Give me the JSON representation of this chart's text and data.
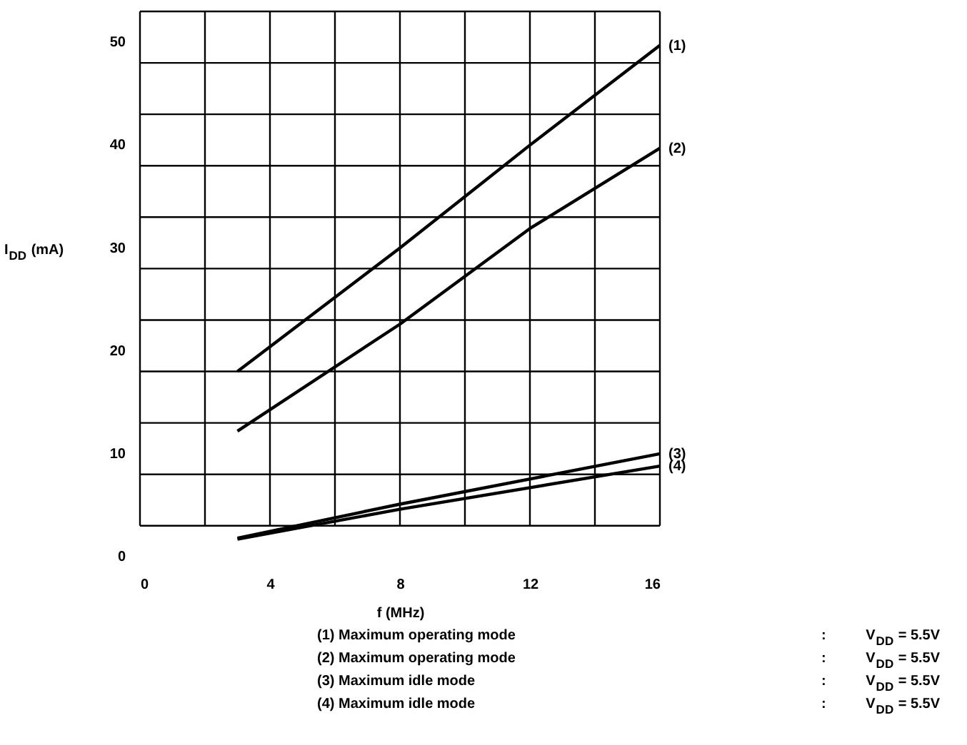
{
  "chart_data": {
    "type": "line",
    "ylabel": "I$_{DD}$ (mA)",
    "xlabel": "f (MHz)",
    "xlim": [
      0,
      16
    ],
    "xticks": [
      0,
      {
        "value": 2,
        "label": null
      },
      4,
      {
        "value": 6,
        "label": null
      },
      8,
      {
        "value": 10,
        "label": null
      },
      12,
      {
        "value": 14,
        "label": null
      },
      16
    ],
    "ylim": [
      0,
      53
    ],
    "yticks": [
      0,
      {
        "value": 3,
        "label": null
      },
      {
        "value": 8,
        "label": null
      },
      10,
      {
        "value": 13,
        "label": null
      },
      {
        "value": 18,
        "label": null
      },
      20,
      {
        "value": 23,
        "label": null
      },
      {
        "value": 28,
        "label": null
      },
      30,
      {
        "value": 33,
        "label": null
      },
      {
        "value": 38,
        "label": null
      },
      40,
      {
        "value": 43,
        "label": null
      },
      {
        "value": 48,
        "label": null
      },
      50,
      {
        "value": 53,
        "label": null
      }
    ],
    "grid": true,
    "marker": "none",
    "line_style": "solid",
    "series": [
      {
        "name": "(1)",
        "color": "#000000",
        "x": [
          3,
          8,
          12,
          16
        ],
        "values": [
          18,
          30,
          40,
          49.7
        ]
      },
      {
        "name": "(2)",
        "color": "#000000",
        "x": [
          3,
          8,
          12,
          16
        ],
        "values": [
          12.2,
          22.6,
          31.9,
          39.7
        ]
      },
      {
        "name": "(3)",
        "color": "#000000",
        "x": [
          3,
          8,
          16
        ],
        "values": [
          1.8,
          5.1,
          10.0
        ]
      },
      {
        "name": "(4)",
        "color": "#000000",
        "x": [
          3,
          8,
          16
        ],
        "values": [
          1.7,
          4.6,
          8.8
        ]
      }
    ],
    "annotations": [
      "(1) Maximum operating mode : V$_{DD}$ = 5.5V",
      "(2) Maximum operating mode : V$_{DD}$ = 5.5V",
      "(3) Maximum idle mode : V$_{DD}$ = 5.5V",
      "(4) Maximum idle mode : V$_{DD}$ = 5.5V"
    ]
  }
}
